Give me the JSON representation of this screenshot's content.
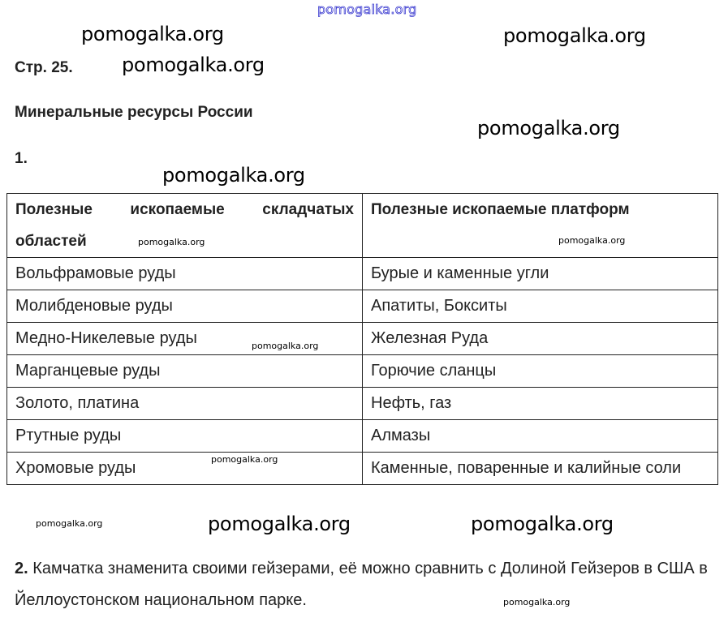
{
  "watermarks": {
    "top": "pomogalka.org",
    "text": "pomogalka.org"
  },
  "page_label": "Стр. 25.",
  "title": "Минеральные ресурсы России",
  "task1": {
    "number": "1."
  },
  "table": {
    "headers": [
      "Полезные ископаемые складчатых областей",
      "Полезные ископаемые платформ"
    ],
    "rows": [
      [
        "Вольфрамовые руды",
        "Бурые и каменные угли"
      ],
      [
        "Молибденовые руды",
        "Апатиты, Бокситы"
      ],
      [
        "Медно-Никелевые руды",
        "Железная Руда"
      ],
      [
        "Марганцевые руды",
        "Горючие сланцы"
      ],
      [
        "Золото, платина",
        "Нефть, газ"
      ],
      [
        "Ртутные руды",
        "Алмазы"
      ],
      [
        "Хромовые руды",
        "Каменные, поваренные и калийные соли"
      ]
    ]
  },
  "task2": {
    "number": "2.",
    "text": " Камчатка знаменита своими гейзерами, её можно сравнить с Долиной Гейзеров в США в Йеллоустонском национальном парке."
  }
}
